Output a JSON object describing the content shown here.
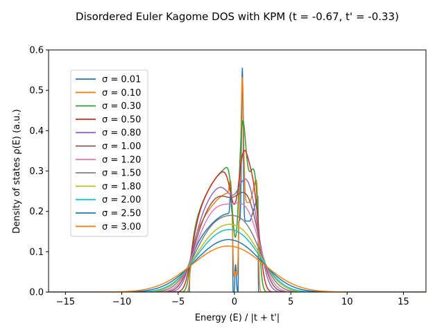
{
  "chart_data": {
    "type": "line",
    "title": "Disordered Euler Kagome DOS with KPM (t = -0.67, t' = -0.33)",
    "xlabel": "Energy (E) / |t + t'|",
    "ylabel": "Density of states ρ(E) (a.u.)",
    "xlim": [
      -16.5,
      17
    ],
    "ylim": [
      0,
      0.6
    ],
    "xticks": [
      -15,
      -10,
      -5,
      0,
      5,
      10,
      15
    ],
    "yticks": [
      0.0,
      0.1,
      0.2,
      0.3,
      0.4,
      0.5,
      0.6
    ],
    "xtick_labels": [
      "−15",
      "−10",
      "−5",
      "0",
      "5",
      "10",
      "15"
    ],
    "ytick_labels": [
      "0.0",
      "0.1",
      "0.2",
      "0.3",
      "0.4",
      "0.5",
      "0.6"
    ],
    "grid": false,
    "legend_position": "upper-left",
    "series": [
      {
        "name": "σ = 0.01",
        "sigma": 0.01,
        "color": "#1f77b4"
      },
      {
        "name": "σ = 0.10",
        "sigma": 0.1,
        "color": "#ff7f0e"
      },
      {
        "name": "σ = 0.30",
        "sigma": 0.3,
        "color": "#2ca02c"
      },
      {
        "name": "σ = 0.50",
        "sigma": 0.5,
        "color": "#d62728"
      },
      {
        "name": "σ = 0.80",
        "sigma": 0.8,
        "color": "#9467bd"
      },
      {
        "name": "σ = 1.00",
        "sigma": 1.0,
        "color": "#8c564b"
      },
      {
        "name": "σ = 1.20",
        "sigma": 1.2,
        "color": "#e377c2"
      },
      {
        "name": "σ = 1.50",
        "sigma": 1.5,
        "color": "#7f7f7f"
      },
      {
        "name": "σ = 1.80",
        "sigma": 1.8,
        "color": "#bcbd22"
      },
      {
        "name": "σ = 2.00",
        "sigma": 2.0,
        "color": "#17becf"
      },
      {
        "name": "σ = 2.50",
        "sigma": 2.5,
        "color": "#1f77b4"
      },
      {
        "name": "σ = 3.00",
        "sigma": 3.0,
        "color": "#ff7f0e"
      }
    ]
  }
}
